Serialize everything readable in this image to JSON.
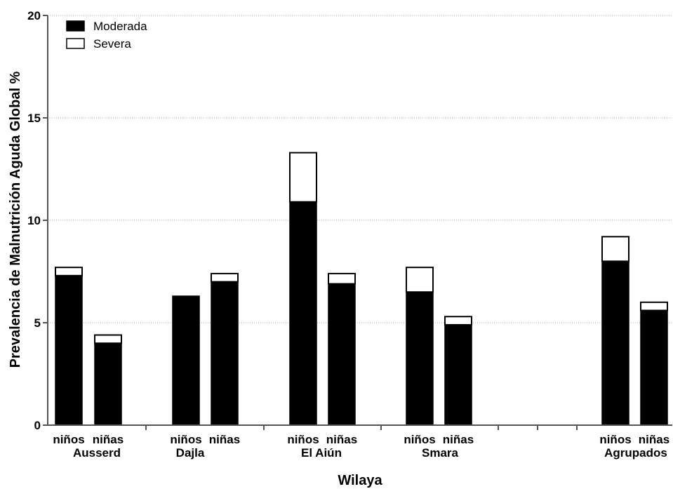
{
  "chart_data": {
    "type": "bar",
    "stacked": true,
    "xlabel": "Wilaya",
    "ylabel": "Prevalencia de Malnutrición Aguda Global %",
    "ylim": [
      0,
      20
    ],
    "yticks": [
      0,
      5,
      10,
      15,
      20
    ],
    "grid": "horizontal dotted",
    "legend_position": "top-left",
    "groups": [
      "Ausserd",
      "Dajla",
      "El Aiún",
      "Smara",
      "Agrupados"
    ],
    "subcategories": [
      "niños",
      "niñas"
    ],
    "series": [
      {
        "name": "Moderada",
        "color": "#000000",
        "values": [
          7.3,
          4.0,
          6.3,
          7.0,
          10.9,
          6.9,
          6.5,
          4.9,
          8.0,
          5.6
        ]
      },
      {
        "name": "Severa",
        "color": "#ffffff",
        "values": [
          0.4,
          0.4,
          0.0,
          0.4,
          2.4,
          0.5,
          1.2,
          0.4,
          1.2,
          0.4
        ]
      }
    ]
  }
}
